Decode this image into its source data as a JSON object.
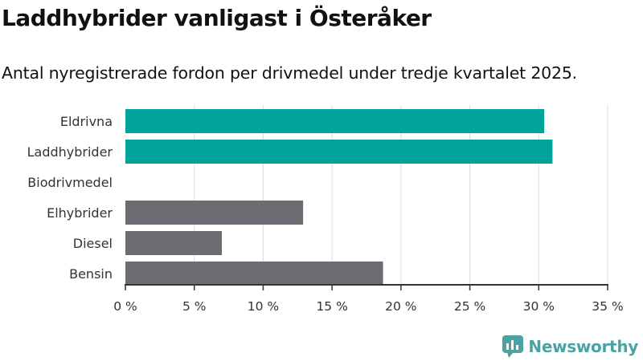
{
  "title": "Laddhybrider vanligast i Österåker",
  "subtitle": "Antal nyregistrerade fordon per drivmedel under tredje kvartalet 2025.",
  "brand": "Newsworthy",
  "colors": {
    "highlight": "#00a49b",
    "neutral": "#6d6c73",
    "grid": "#dddddd",
    "axis": "#333333",
    "brand": "#4aa3a3"
  },
  "chart_data": {
    "type": "bar",
    "orientation": "horizontal",
    "title": "Laddhybrider vanligast i Österåker",
    "subtitle": "Antal nyregistrerade fordon per drivmedel under tredje kvartalet 2025.",
    "categories": [
      "Eldrivna",
      "Laddhybrider",
      "Biodrivmedel",
      "Elhybrider",
      "Diesel",
      "Bensin"
    ],
    "values": [
      30.4,
      31.0,
      0,
      12.9,
      7.0,
      18.7
    ],
    "bar_colors": [
      "#00a49b",
      "#00a49b",
      "#00a49b",
      "#6d6c73",
      "#6d6c73",
      "#6d6c73"
    ],
    "xlim": [
      0,
      35
    ],
    "xticks": [
      0,
      5,
      10,
      15,
      20,
      25,
      30,
      35
    ],
    "xtick_labels": [
      "0 %",
      "5 %",
      "10 %",
      "15 %",
      "20 %",
      "25 %",
      "30 %",
      "35 %"
    ],
    "xlabel": "",
    "ylabel": "",
    "grid": true
  }
}
